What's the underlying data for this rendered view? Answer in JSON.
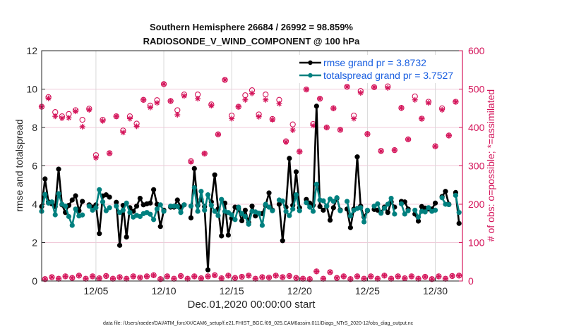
{
  "chart_data": {
    "type": "line",
    "title": [
      "Southern Hemisphere 26684 / 26992 = 98.859%",
      "RADIOSONDE_V_WIND_COMPONENT @ 100 hPa"
    ],
    "xlabel": "Dec.01,2020 00:00:00 start",
    "ylabel_left": "rmse and totalspread",
    "ylabel_right": "# of obs: o=possible; *=assimilated",
    "ylim_left": [
      0,
      12
    ],
    "ylim_right": [
      0,
      600
    ],
    "xlim_days": [
      0,
      31
    ],
    "x_step_hours": 6,
    "yticks_left": [
      "0",
      "2",
      "4",
      "6",
      "8",
      "10",
      "12"
    ],
    "yticks_right": [
      "0",
      "100",
      "200",
      "300",
      "400",
      "500",
      "600"
    ],
    "xticks": [
      {
        "day": 4,
        "label": "12/05"
      },
      {
        "day": 9,
        "label": "12/10"
      },
      {
        "day": 14,
        "label": "12/15"
      },
      {
        "day": 19,
        "label": "12/20"
      },
      {
        "day": 24,
        "label": "12/25"
      },
      {
        "day": 29,
        "label": "12/30"
      }
    ],
    "grid": true,
    "legend_position": "top-right",
    "colors": {
      "rmse": "#000000",
      "spread": "#00807f",
      "obs": "#d4145a",
      "legend_text": "#1a5fe0",
      "grid": "#f0c8d8",
      "vgrid": "#d9d9d9"
    },
    "series": [
      {
        "name": "rmse grand pr = 3.8732",
        "key": "rmse",
        "values": [
          3.88,
          5.32,
          4.12,
          4.02,
          3.88,
          5.83,
          3.97,
          3.57,
          3.94,
          4.22,
          4.44,
          3.66,
          4.15,
          null,
          3.97,
          3.85,
          3.97,
          2.47,
          4.43,
          4.49,
          4.37,
          null,
          4.1,
          1.86,
          3.94,
          2.29,
          3.82,
          3.63,
          3.9,
          4.31,
          3.97,
          4.02,
          4.06,
          4.76,
          4.0,
          2.84,
          3.69,
          null,
          3.85,
          3.85,
          4.22,
          3.85,
          3.97,
          null,
          3.29,
          5.86,
          3.94,
          4.25,
          3.88,
          0.58,
          4.12,
          5.53,
          3.75,
          2.35,
          4.06,
          2.39,
          3.27,
          3.85,
          3.75,
          3.14,
          3.69,
          3.05,
          3.9,
          3.39,
          3.53,
          3.51,
          3.94,
          4.59,
          3.69,
          null,
          4.0,
          2.1,
          3.85,
          6.39,
          3.94,
          5.69,
          3.82,
          null,
          4.25,
          4.06,
          3.94,
          9.11,
          3.88,
          3.69,
          3.9,
          3.17,
          3.82,
          4.31,
          3.7,
          null,
          3.75,
          2.78,
          3.75,
          6.47,
          3.9,
          3.33,
          3.66,
          null,
          3.73,
          3.69,
          3.57,
          3.85,
          3.57,
          4.12,
          3.85,
          null,
          4.15,
          4.12,
          3.75,
          null,
          3.49,
          3.12,
          3.88,
          3.8,
          3.75,
          3.75,
          4.06,
          null,
          4.4,
          4.67,
          4.0,
          null,
          4.61,
          3.0
        ]
      },
      {
        "name": "totalspread grand pr = 3.7527",
        "key": "spread",
        "values": [
          3.63,
          4.51,
          4.06,
          4.12,
          3.45,
          4.55,
          4.0,
          3.9,
          3.36,
          2.9,
          3.75,
          3.39,
          3.44,
          null,
          3.9,
          3.69,
          3.82,
          4.76,
          4.12,
          3.66,
          3.82,
          null,
          3.9,
          3.57,
          3.69,
          4.06,
          3.57,
          3.33,
          3.42,
          3.36,
          3.51,
          3.57,
          3.48,
          3.2,
          3.75,
          3.97,
          3.63,
          null,
          3.9,
          3.9,
          3.88,
          3.57,
          3.97,
          null,
          3.9,
          4.86,
          3.63,
          4.67,
          3.69,
          4.49,
          3.94,
          3.63,
          3.41,
          4.25,
          3.63,
          3.57,
          3.45,
          3.2,
          3.85,
          3.51,
          3.36,
          2.96,
          3.63,
          3.6,
          3.53,
          2.9,
          4.0,
          3.85,
          3.66,
          null,
          4.22,
          4.17,
          3.63,
          3.41,
          3.75,
          4.49,
          3.66,
          null,
          4.08,
          3.85,
          3.63,
          5.04,
          4.22,
          4.18,
          3.9,
          4.27,
          4.15,
          4.34,
          3.66,
          null,
          4.15,
          3.39,
          3.69,
          3.78,
          3.82,
          3.08,
          3.69,
          null,
          3.9,
          4.02,
          3.53,
          3.8,
          4.0,
          4.31,
          3.49,
          null,
          4.02,
          3.49,
          3.66,
          null,
          3.69,
          3.33,
          3.63,
          3.6,
          3.82,
          3.63,
          3.69,
          null,
          4.34,
          4.0,
          3.98,
          null,
          4.46,
          3.57
        ]
      },
      {
        "name": "obs possible (o)",
        "key": "possible",
        "x_step_hours": 12,
        "values": [
          454,
          479,
          440,
          429,
          435,
          445,
          420,
          449,
          328,
          420,
          333,
          429,
          392,
          429,
          410,
          472,
          457,
          471,
          513,
          469,
          445,
          486,
          312,
          486,
          332,
          460,
          382,
          524,
          431,
          454,
          484,
          497,
          434,
          486,
          422,
          472,
          364,
          408,
          337,
          499,
          409,
          475,
          400,
          450,
          394,
          506,
          431,
          495,
          383,
          505,
          339,
          507,
          341,
          451,
          369,
          481,
          423,
          467,
          351,
          450,
          379,
          467
        ]
      },
      {
        "name": "obs assimilated (*)",
        "key": "assimilated",
        "x_step_hours": 12,
        "values": [
          454,
          476,
          429,
          424,
          425,
          442,
          402,
          446,
          321,
          417,
          333,
          429,
          387,
          423,
          403,
          472,
          452,
          464,
          513,
          469,
          433,
          482,
          310,
          475,
          332,
          457,
          382,
          524,
          423,
          454,
          472,
          489,
          428,
          472,
          420,
          462,
          362,
          393,
          337,
          499,
          405,
          475,
          400,
          450,
          394,
          506,
          423,
          490,
          383,
          505,
          338,
          503,
          341,
          451,
          369,
          472,
          423,
          464,
          351,
          446,
          379,
          467
        ]
      },
      {
        "name": "obs possible off-hours (o)",
        "key": "possible_offhour",
        "x_step_hours": 12,
        "x_offset_hours": 6,
        "values": [
          5,
          10,
          6,
          12,
          8,
          14,
          6,
          12,
          7,
          13,
          6,
          10,
          6,
          12,
          9,
          12,
          15,
          5,
          12,
          6,
          13,
          6,
          12,
          7,
          12,
          15,
          7,
          14,
          8,
          11,
          14,
          6,
          10,
          9,
          14,
          10,
          13,
          8,
          6,
          5,
          25,
          6,
          23,
          8,
          12,
          5,
          12,
          6,
          12,
          6,
          14,
          6,
          12,
          7,
          12,
          6,
          11,
          5,
          12,
          6,
          13,
          14
        ]
      }
    ]
  },
  "footer": {
    "data_file": "data file: /Users/raeder/DAI/ATM_forcXX/CAM6_setup/f.e21.FHIST_BGC.f09_025.CAM6assim.011/Diags_NTrS_2020-12/obs_diag_output.nc"
  }
}
